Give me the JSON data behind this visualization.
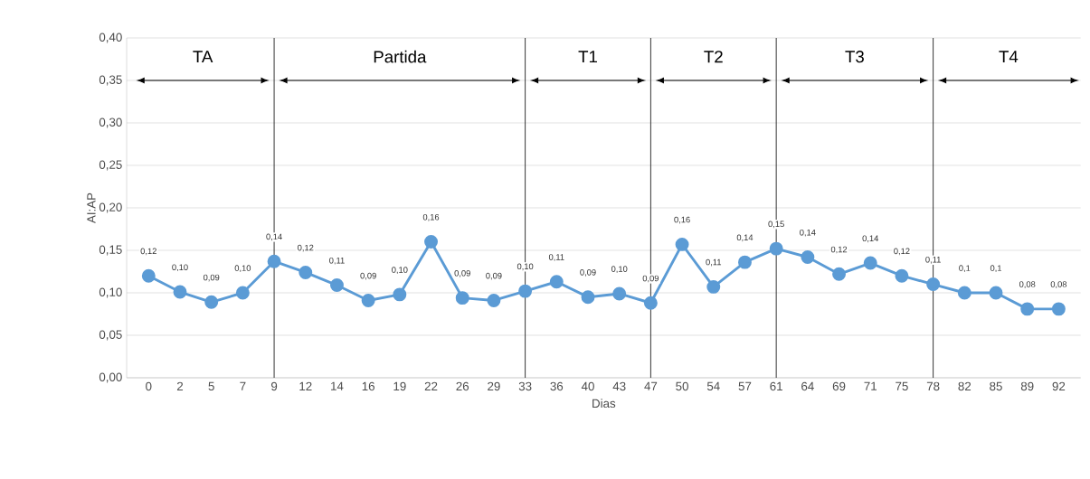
{
  "chart_data": {
    "type": "line",
    "xlabel": "Dias",
    "ylabel": "AI:AP",
    "categories": [
      "0",
      "2",
      "5",
      "7",
      "9",
      "12",
      "14",
      "16",
      "19",
      "22",
      "26",
      "29",
      "33",
      "36",
      "40",
      "43",
      "47",
      "50",
      "54",
      "57",
      "61",
      "64",
      "69",
      "71",
      "75",
      "78",
      "82",
      "85",
      "89",
      "92"
    ],
    "series": [
      {
        "color": "#5b9bd5",
        "values": [
          0.12,
          0.101,
          0.089,
          0.1,
          0.137,
          0.124,
          0.109,
          0.091,
          0.098,
          0.16,
          0.094,
          0.091,
          0.102,
          0.113,
          0.095,
          0.099,
          0.088,
          0.157,
          0.107,
          0.136,
          0.152,
          0.142,
          0.122,
          0.135,
          0.12,
          0.11,
          0.1,
          0.1,
          0.081,
          0.081
        ],
        "value_labels": [
          "0,12",
          "0,10",
          "0,09",
          "0,10",
          "0,14",
          "0,12",
          "0,11",
          "0,09",
          "0,10",
          "0,16",
          "0,09",
          "0,09",
          "0,10",
          "0,11",
          "0,09",
          "0,10",
          "0,09",
          "0,16",
          "0,11",
          "0,14",
          "0,15",
          "0,14",
          "0,12",
          "0,14",
          "0,12",
          "0,11",
          "0,1",
          "0,1",
          "0,08",
          "0,08"
        ]
      }
    ],
    "ylim": [
      0,
      0.4
    ],
    "yticks": [
      {
        "value": 0,
        "label": "0,00"
      },
      {
        "value": 0.05,
        "label": "0,05"
      },
      {
        "value": 0.1,
        "label": "0,10"
      },
      {
        "value": 0.15,
        "label": "0,15"
      },
      {
        "value": 0.2,
        "label": "0,20"
      },
      {
        "value": 0.25,
        "label": "0,25"
      },
      {
        "value": 0.3,
        "label": "0,30"
      },
      {
        "value": 0.35,
        "label": "0,35"
      },
      {
        "value": 0.4,
        "label": "0,40"
      }
    ],
    "grid": "y",
    "marker": "circle",
    "line_style": "solid",
    "annotations": [
      "TA",
      "Partida",
      "T1",
      "T2",
      "T3",
      "T4"
    ],
    "ref_lines": [
      {
        "axis": "x",
        "value": "9",
        "color": "#000000"
      },
      {
        "axis": "x",
        "value": "33",
        "color": "#000000"
      },
      {
        "axis": "x",
        "value": "47",
        "color": "#000000"
      },
      {
        "axis": "x",
        "value": "61",
        "color": "#000000"
      },
      {
        "axis": "x",
        "value": "78",
        "color": "#000000"
      }
    ]
  }
}
